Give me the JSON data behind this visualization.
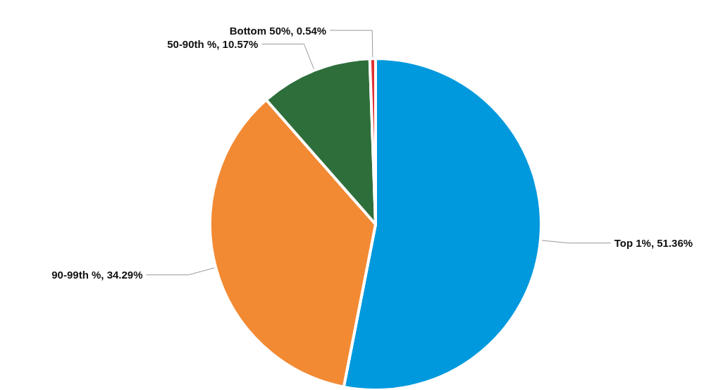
{
  "chart_data": {
    "type": "pie",
    "categories": [
      "Top 1%",
      "90-99th %",
      "50-90th %",
      "Bottom 50%"
    ],
    "values": [
      51.36,
      34.29,
      10.57,
      0.54
    ],
    "value_labels": [
      "51.36%",
      "34.29%",
      "10.57%",
      "0.54%"
    ],
    "colors": [
      "#0099dd",
      "#f28a33",
      "#2e6e3b",
      "#e03030"
    ],
    "legend": false
  }
}
